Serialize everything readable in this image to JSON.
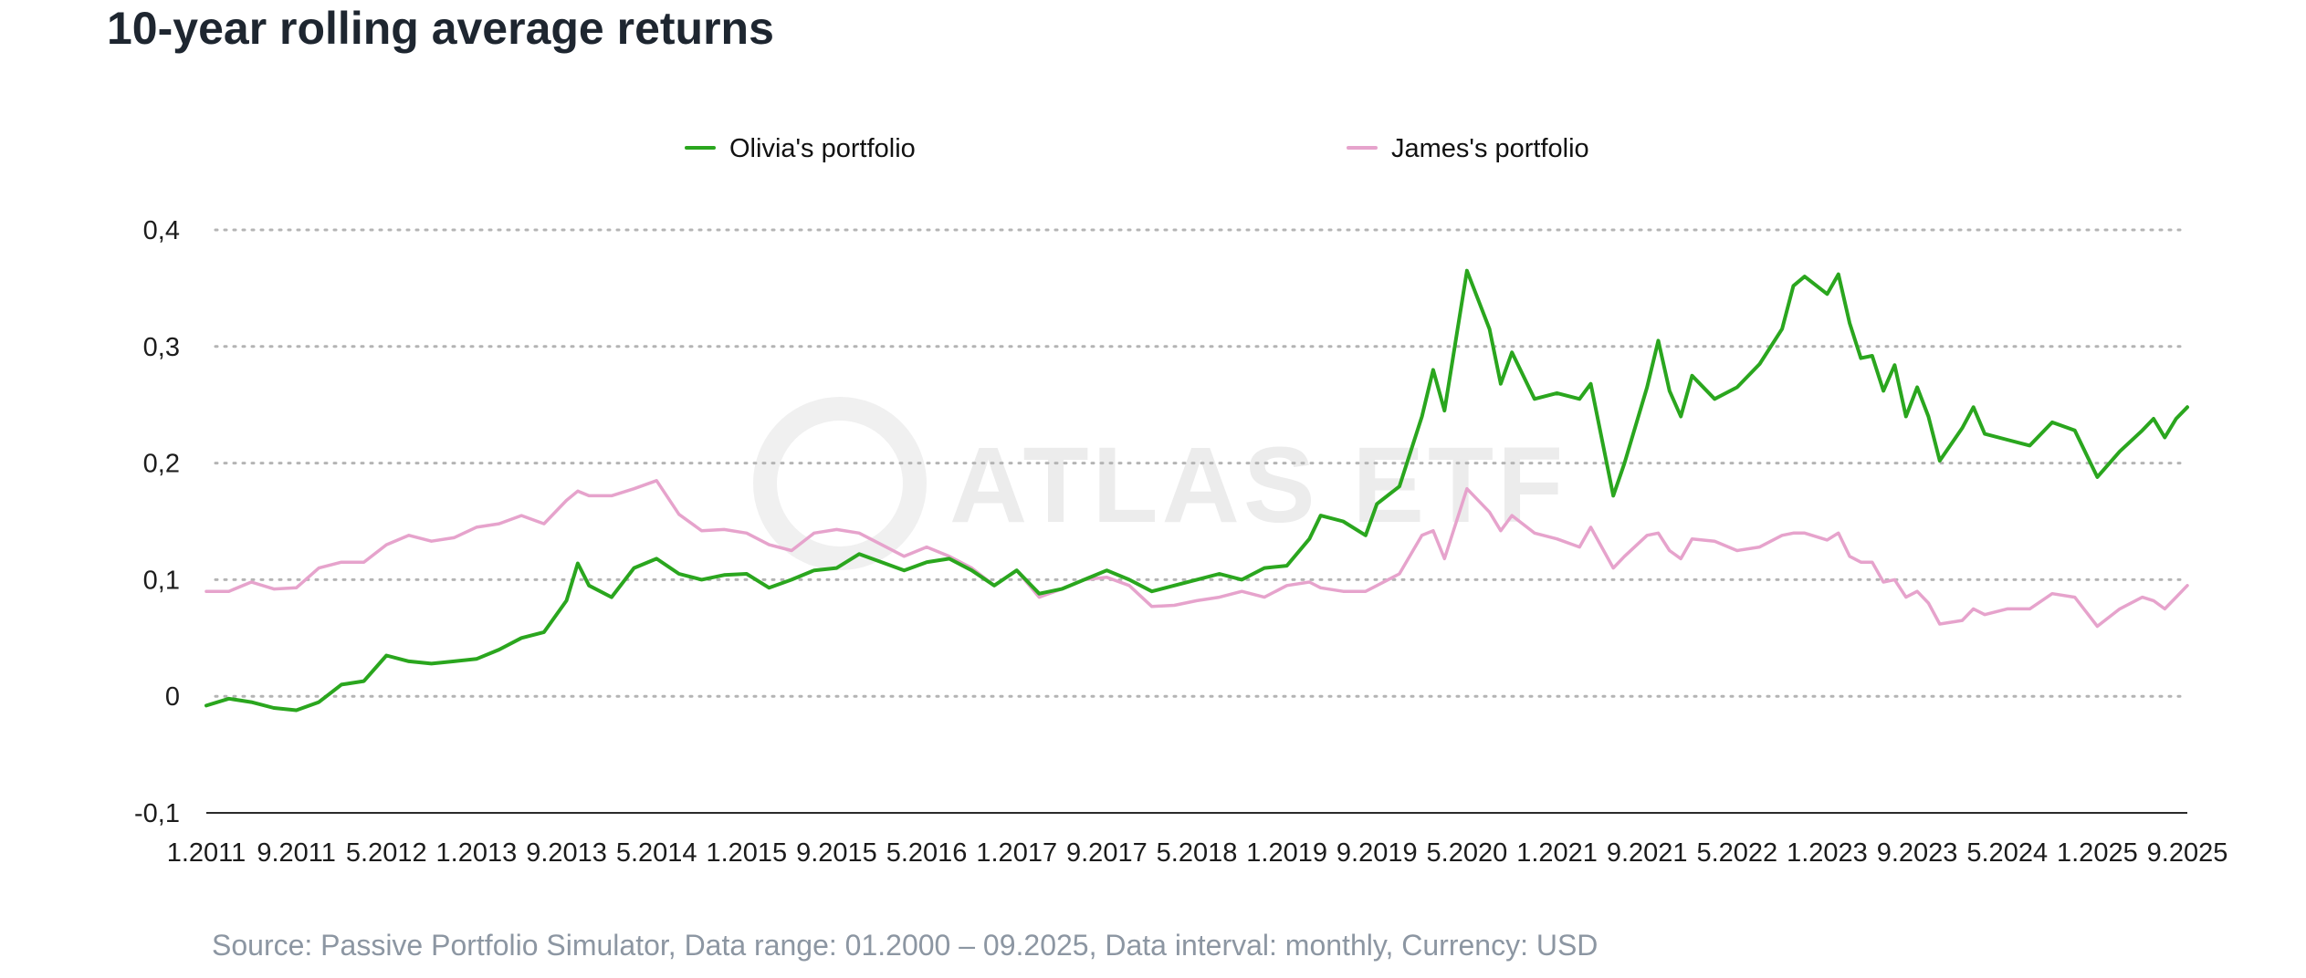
{
  "chart_data": {
    "type": "line",
    "title": "10-year rolling average returns",
    "source": "Source: Passive Portfolio Simulator, Data range: 01.2000 – 09.2025, Data interval: monthly, Currency: USD",
    "legend_position": "top-center",
    "grid": true,
    "watermark": "ATLAS ETF",
    "ylim": [
      -0.1,
      0.4
    ],
    "y_ticks": [
      {
        "value": 0.4,
        "label": "0,4"
      },
      {
        "value": 0.3,
        "label": "0,3"
      },
      {
        "value": 0.2,
        "label": "0,2"
      },
      {
        "value": 0.1,
        "label": "0,1"
      },
      {
        "value": 0,
        "label": "0"
      },
      {
        "value": -0.1,
        "label": "-0,1"
      }
    ],
    "x_ticks": [
      "1.2011",
      "9.2011",
      "5.2012",
      "1.2013",
      "9.2013",
      "5.2014",
      "1.2015",
      "9.2015",
      "5.2016",
      "1.2017",
      "9.2017",
      "5.2018",
      "1.2019",
      "9.2019",
      "5.2020",
      "1.2021",
      "9.2021",
      "5.2022",
      "1.2023",
      "9.2023",
      "5.2024",
      "1.2025",
      "9.2025"
    ],
    "series": [
      {
        "name": "Olivia's portfolio",
        "color": "#2aa61e",
        "points": [
          [
            "1.2011",
            -0.008
          ],
          [
            "3.2011",
            -0.002
          ],
          [
            "5.2011",
            -0.005
          ],
          [
            "7.2011",
            -0.01
          ],
          [
            "9.2011",
            -0.012
          ],
          [
            "11.2011",
            -0.005
          ],
          [
            "1.2012",
            0.01
          ],
          [
            "3.2012",
            0.013
          ],
          [
            "5.2012",
            0.035
          ],
          [
            "7.2012",
            0.03
          ],
          [
            "9.2012",
            0.028
          ],
          [
            "11.2012",
            0.03
          ],
          [
            "1.2013",
            0.032
          ],
          [
            "3.2013",
            0.04
          ],
          [
            "5.2013",
            0.05
          ],
          [
            "7.2013",
            0.055
          ],
          [
            "9.2013",
            0.082
          ],
          [
            "10.2013",
            0.114
          ],
          [
            "11.2013",
            0.095
          ],
          [
            "1.2014",
            0.085
          ],
          [
            "3.2014",
            0.11
          ],
          [
            "5.2014",
            0.118
          ],
          [
            "7.2014",
            0.105
          ],
          [
            "9.2014",
            0.1
          ],
          [
            "11.2014",
            0.104
          ],
          [
            "1.2015",
            0.105
          ],
          [
            "3.2015",
            0.093
          ],
          [
            "5.2015",
            0.1
          ],
          [
            "7.2015",
            0.108
          ],
          [
            "9.2015",
            0.11
          ],
          [
            "11.2015",
            0.122
          ],
          [
            "1.2016",
            0.115
          ],
          [
            "3.2016",
            0.108
          ],
          [
            "5.2016",
            0.115
          ],
          [
            "7.2016",
            0.118
          ],
          [
            "9.2016",
            0.108
          ],
          [
            "11.2016",
            0.095
          ],
          [
            "1.2017",
            0.108
          ],
          [
            "3.2017",
            0.088
          ],
          [
            "5.2017",
            0.092
          ],
          [
            "7.2017",
            0.1
          ],
          [
            "9.2017",
            0.108
          ],
          [
            "11.2017",
            0.1
          ],
          [
            "1.2018",
            0.09
          ],
          [
            "3.2018",
            0.095
          ],
          [
            "5.2018",
            0.1
          ],
          [
            "7.2018",
            0.105
          ],
          [
            "9.2018",
            0.1
          ],
          [
            "11.2018",
            0.11
          ],
          [
            "1.2019",
            0.112
          ],
          [
            "3.2019",
            0.135
          ],
          [
            "4.2019",
            0.155
          ],
          [
            "6.2019",
            0.15
          ],
          [
            "8.2019",
            0.138
          ],
          [
            "9.2019",
            0.165
          ],
          [
            "11.2019",
            0.18
          ],
          [
            "1.2020",
            0.24
          ],
          [
            "2.2020",
            0.28
          ],
          [
            "3.2020",
            0.245
          ],
          [
            "5.2020",
            0.365
          ],
          [
            "7.2020",
            0.315
          ],
          [
            "8.2020",
            0.268
          ],
          [
            "9.2020",
            0.295
          ],
          [
            "11.2020",
            0.255
          ],
          [
            "1.2021",
            0.26
          ],
          [
            "3.2021",
            0.255
          ],
          [
            "4.2021",
            0.268
          ],
          [
            "6.2021",
            0.172
          ],
          [
            "7.2021",
            0.2
          ],
          [
            "9.2021",
            0.265
          ],
          [
            "10.2021",
            0.305
          ],
          [
            "11.2021",
            0.262
          ],
          [
            "12.2021",
            0.24
          ],
          [
            "1.2022",
            0.275
          ],
          [
            "3.2022",
            0.255
          ],
          [
            "5.2022",
            0.265
          ],
          [
            "7.2022",
            0.285
          ],
          [
            "9.2022",
            0.315
          ],
          [
            "10.2022",
            0.352
          ],
          [
            "11.2022",
            0.36
          ],
          [
            "1.2023",
            0.345
          ],
          [
            "2.2023",
            0.362
          ],
          [
            "3.2023",
            0.32
          ],
          [
            "4.2023",
            0.29
          ],
          [
            "5.2023",
            0.292
          ],
          [
            "6.2023",
            0.262
          ],
          [
            "7.2023",
            0.284
          ],
          [
            "8.2023",
            0.24
          ],
          [
            "9.2023",
            0.265
          ],
          [
            "10.2023",
            0.24
          ],
          [
            "11.2023",
            0.202
          ],
          [
            "1.2024",
            0.23
          ],
          [
            "2.2024",
            0.248
          ],
          [
            "3.2024",
            0.225
          ],
          [
            "5.2024",
            0.22
          ],
          [
            "7.2024",
            0.215
          ],
          [
            "9.2024",
            0.235
          ],
          [
            "11.2024",
            0.228
          ],
          [
            "1.2025",
            0.188
          ],
          [
            "3.2025",
            0.21
          ],
          [
            "5.2025",
            0.228
          ],
          [
            "6.2025",
            0.238
          ],
          [
            "7.2025",
            0.222
          ],
          [
            "8.2025",
            0.238
          ],
          [
            "9.2025",
            0.248
          ]
        ]
      },
      {
        "name": "James's portfolio",
        "color": "#e6a3cc",
        "points": [
          [
            "1.2011",
            0.09
          ],
          [
            "3.2011",
            0.09
          ],
          [
            "5.2011",
            0.098
          ],
          [
            "7.2011",
            0.092
          ],
          [
            "9.2011",
            0.093
          ],
          [
            "11.2011",
            0.11
          ],
          [
            "1.2012",
            0.115
          ],
          [
            "3.2012",
            0.115
          ],
          [
            "5.2012",
            0.13
          ],
          [
            "7.2012",
            0.138
          ],
          [
            "9.2012",
            0.133
          ],
          [
            "11.2012",
            0.136
          ],
          [
            "1.2013",
            0.145
          ],
          [
            "3.2013",
            0.148
          ],
          [
            "5.2013",
            0.155
          ],
          [
            "7.2013",
            0.148
          ],
          [
            "9.2013",
            0.168
          ],
          [
            "10.2013",
            0.176
          ],
          [
            "11.2013",
            0.172
          ],
          [
            "1.2014",
            0.172
          ],
          [
            "3.2014",
            0.178
          ],
          [
            "5.2014",
            0.185
          ],
          [
            "7.2014",
            0.156
          ],
          [
            "9.2014",
            0.142
          ],
          [
            "11.2014",
            0.143
          ],
          [
            "1.2015",
            0.14
          ],
          [
            "3.2015",
            0.13
          ],
          [
            "5.2015",
            0.125
          ],
          [
            "7.2015",
            0.14
          ],
          [
            "9.2015",
            0.143
          ],
          [
            "11.2015",
            0.14
          ],
          [
            "1.2016",
            0.13
          ],
          [
            "3.2016",
            0.12
          ],
          [
            "5.2016",
            0.128
          ],
          [
            "7.2016",
            0.12
          ],
          [
            "9.2016",
            0.11
          ],
          [
            "11.2016",
            0.095
          ],
          [
            "1.2017",
            0.108
          ],
          [
            "3.2017",
            0.085
          ],
          [
            "5.2017",
            0.092
          ],
          [
            "7.2017",
            0.1
          ],
          [
            "9.2017",
            0.102
          ],
          [
            "11.2017",
            0.095
          ],
          [
            "1.2018",
            0.077
          ],
          [
            "3.2018",
            0.078
          ],
          [
            "5.2018",
            0.082
          ],
          [
            "7.2018",
            0.085
          ],
          [
            "9.2018",
            0.09
          ],
          [
            "11.2018",
            0.085
          ],
          [
            "1.2019",
            0.095
          ],
          [
            "3.2019",
            0.098
          ],
          [
            "4.2019",
            0.093
          ],
          [
            "6.2019",
            0.09
          ],
          [
            "8.2019",
            0.09
          ],
          [
            "9.2019",
            0.095
          ],
          [
            "11.2019",
            0.105
          ],
          [
            "1.2020",
            0.138
          ],
          [
            "2.2020",
            0.142
          ],
          [
            "3.2020",
            0.118
          ],
          [
            "5.2020",
            0.178
          ],
          [
            "7.2020",
            0.158
          ],
          [
            "8.2020",
            0.142
          ],
          [
            "9.2020",
            0.155
          ],
          [
            "11.2020",
            0.14
          ],
          [
            "1.2021",
            0.135
          ],
          [
            "3.2021",
            0.128
          ],
          [
            "4.2021",
            0.145
          ],
          [
            "6.2021",
            0.11
          ],
          [
            "7.2021",
            0.12
          ],
          [
            "9.2021",
            0.138
          ],
          [
            "10.2021",
            0.14
          ],
          [
            "11.2021",
            0.125
          ],
          [
            "12.2021",
            0.118
          ],
          [
            "1.2022",
            0.135
          ],
          [
            "3.2022",
            0.133
          ],
          [
            "5.2022",
            0.125
          ],
          [
            "7.2022",
            0.128
          ],
          [
            "9.2022",
            0.138
          ],
          [
            "10.2022",
            0.14
          ],
          [
            "11.2022",
            0.14
          ],
          [
            "1.2023",
            0.134
          ],
          [
            "2.2023",
            0.14
          ],
          [
            "3.2023",
            0.12
          ],
          [
            "4.2023",
            0.115
          ],
          [
            "5.2023",
            0.115
          ],
          [
            "6.2023",
            0.098
          ],
          [
            "7.2023",
            0.1
          ],
          [
            "8.2023",
            0.085
          ],
          [
            "9.2023",
            0.09
          ],
          [
            "10.2023",
            0.08
          ],
          [
            "11.2023",
            0.062
          ],
          [
            "1.2024",
            0.065
          ],
          [
            "2.2024",
            0.075
          ],
          [
            "3.2024",
            0.07
          ],
          [
            "5.2024",
            0.075
          ],
          [
            "7.2024",
            0.075
          ],
          [
            "9.2024",
            0.088
          ],
          [
            "11.2024",
            0.085
          ],
          [
            "1.2025",
            0.06
          ],
          [
            "3.2025",
            0.075
          ],
          [
            "5.2025",
            0.085
          ],
          [
            "6.2025",
            0.082
          ],
          [
            "7.2025",
            0.075
          ],
          [
            "8.2025",
            0.085
          ],
          [
            "9.2025",
            0.095
          ]
        ]
      }
    ]
  }
}
